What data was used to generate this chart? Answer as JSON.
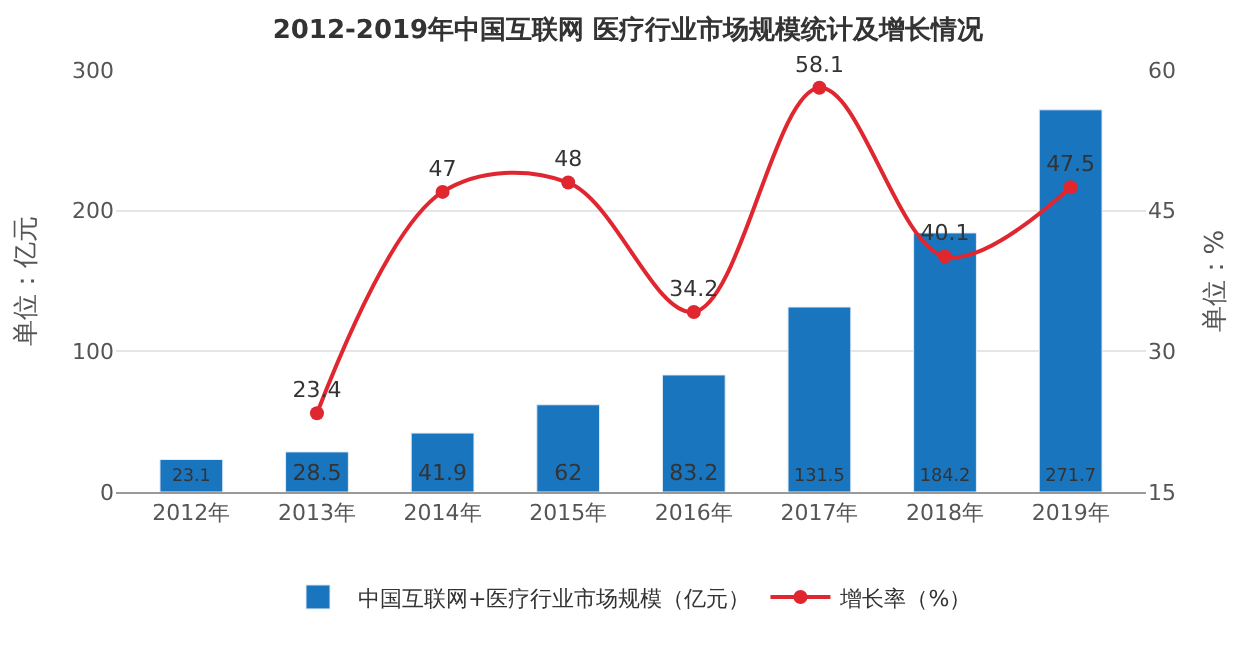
{
  "chart_data": {
    "type": "bar",
    "title": "2012-2019年中国互联网 医疗行业市场规模统计及增长情况",
    "categories": [
      "2012年",
      "2013年",
      "2014年",
      "2015年",
      "2016年",
      "2017年",
      "2018年",
      "2019年"
    ],
    "series": [
      {
        "name": "中国互联网+医疗行业市场规模（亿元）",
        "color": "#1a75bf",
        "values": [
          23.1,
          28.5,
          41.9,
          62,
          83.2,
          131.5,
          184.2,
          271.7
        ]
      },
      {
        "name": "增长率（%）",
        "type": "line",
        "axis": "y2",
        "color": "#e0262f",
        "marker": "circle",
        "values": [
          null,
          23.4,
          47,
          48,
          34.2,
          58.1,
          40.1,
          47.5
        ]
      }
    ],
    "ylabel": "单位：亿元",
    "y2label": "单位：%",
    "ylim": [
      0,
      300
    ],
    "yticks": [
      0,
      100,
      200,
      300
    ],
    "y2lim": [
      15,
      60
    ],
    "y2ticks": [
      15,
      30,
      45,
      60
    ],
    "grid": "y",
    "legend": "bottom",
    "data_labels": true
  }
}
